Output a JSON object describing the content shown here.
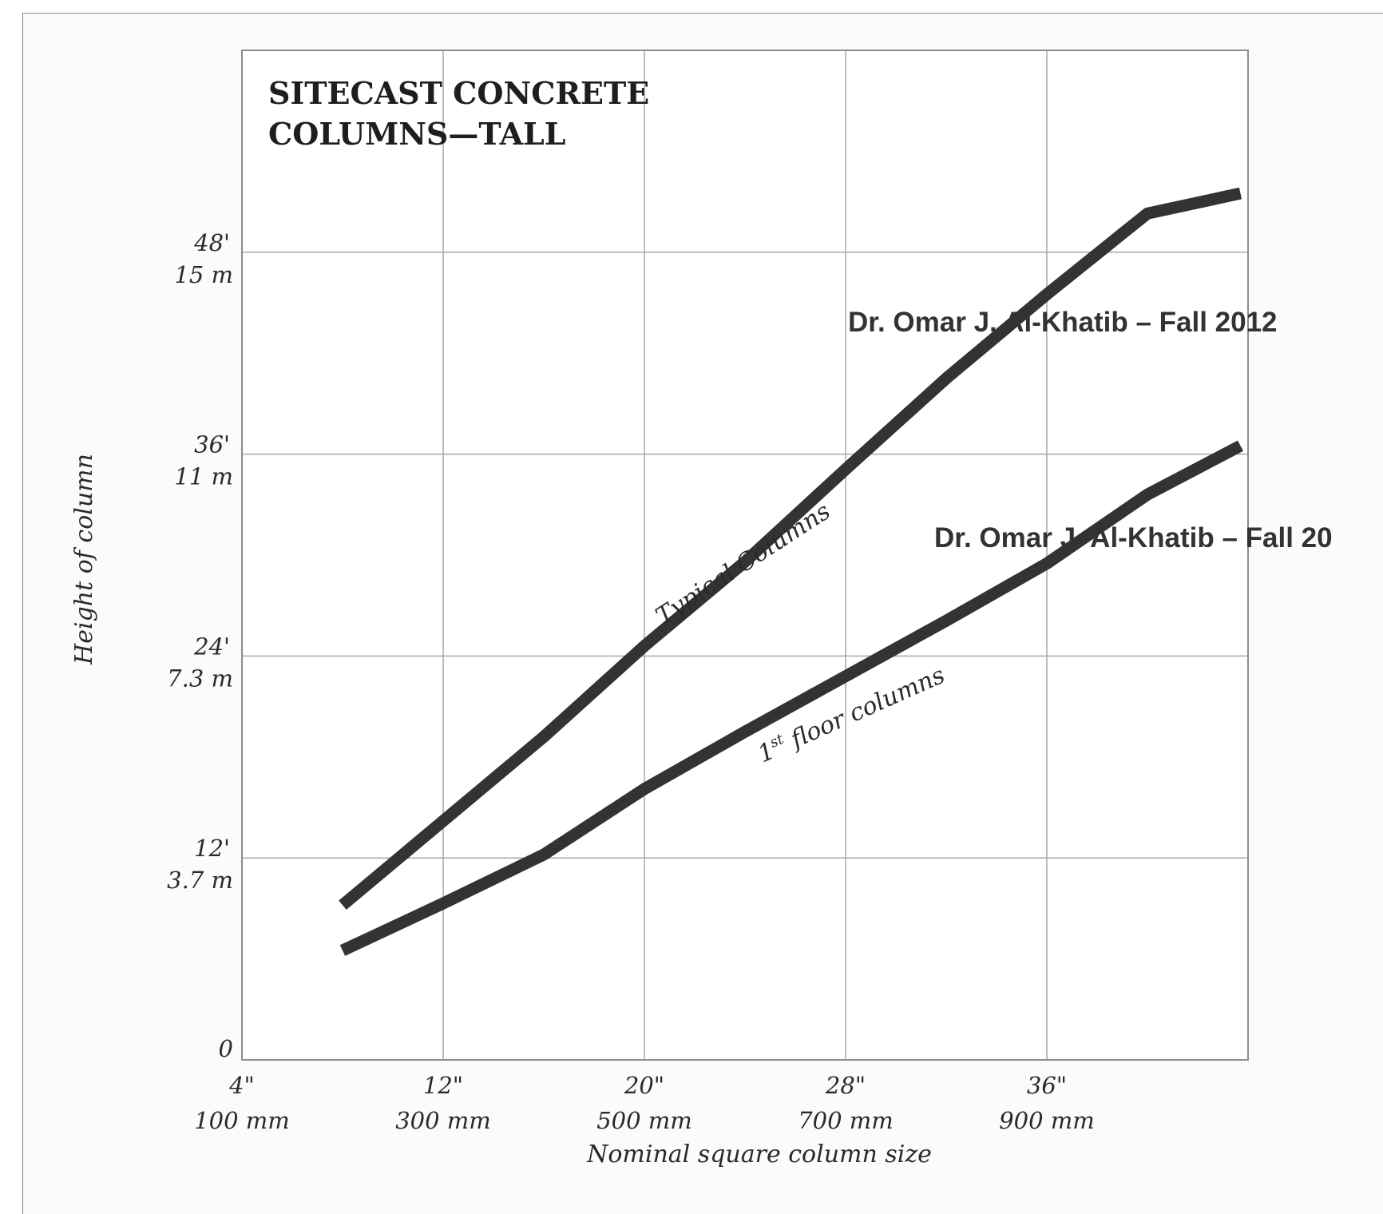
{
  "chart_data": {
    "type": "line",
    "title": "SITECAST CONCRETE COLUMNS—TALL",
    "title_lines": [
      "SITECAST CONCRETE",
      "COLUMNS—TALL"
    ],
    "xlabel": "Nominal square column size",
    "ylabel": "Height of column",
    "x_unit": "inches",
    "y_unit": "feet",
    "xlim": [
      4,
      44
    ],
    "ylim": [
      0,
      60
    ],
    "grid": true,
    "x_ticks": [
      {
        "value": 4,
        "label": "4\"",
        "sublabel": "100 mm"
      },
      {
        "value": 12,
        "label": "12\"",
        "sublabel": "300 mm"
      },
      {
        "value": 20,
        "label": "20\"",
        "sublabel": "500 mm"
      },
      {
        "value": 28,
        "label": "28\"",
        "sublabel": "700 mm"
      },
      {
        "value": 36,
        "label": "36\"",
        "sublabel": "900 mm"
      }
    ],
    "x_gridlines": [
      12,
      20,
      28,
      36,
      44
    ],
    "y_ticks": [
      {
        "value": 0,
        "label": "0",
        "sublabel": ""
      },
      {
        "value": 12,
        "label": "12'",
        "sublabel": "3.7 m"
      },
      {
        "value": 24,
        "label": "24'",
        "sublabel": "7.3 m"
      },
      {
        "value": 36,
        "label": "36'",
        "sublabel": "11 m"
      },
      {
        "value": 48,
        "label": "48'",
        "sublabel": "15 m"
      }
    ],
    "y_gridlines": [
      12,
      24,
      36,
      48,
      60
    ],
    "series": [
      {
        "name": "Typical Columns",
        "x": [
          8,
          12,
          16,
          20,
          24,
          28,
          32,
          36,
          40,
          43.7
        ],
        "y": [
          9.2,
          14.2,
          19.2,
          24.6,
          29.6,
          35.1,
          40.5,
          45.5,
          50.3,
          51.5
        ]
      },
      {
        "name": "1st floor columns",
        "x": [
          8,
          12,
          16,
          20,
          24,
          28,
          32,
          36,
          40,
          43.7
        ],
        "y": [
          6.5,
          9.3,
          12.2,
          16.1,
          19.5,
          22.8,
          26.1,
          29.5,
          33.6,
          36.5
        ]
      }
    ],
    "annotations": [
      {
        "text": "Typical Columns"
      },
      {
        "text_main": "1",
        "text_sup": "st",
        "text_rest": " floor columns"
      }
    ],
    "watermarks": [
      "Dr. Omar J. Al-Khatib – Fall 2012",
      "Dr. Omar J. Al-Khatib – Fall 20"
    ],
    "colors": {
      "curve": "#333333",
      "grid": "#a8a8a8",
      "frame": "#8c8c8c",
      "text": "#2a2a2a"
    }
  }
}
